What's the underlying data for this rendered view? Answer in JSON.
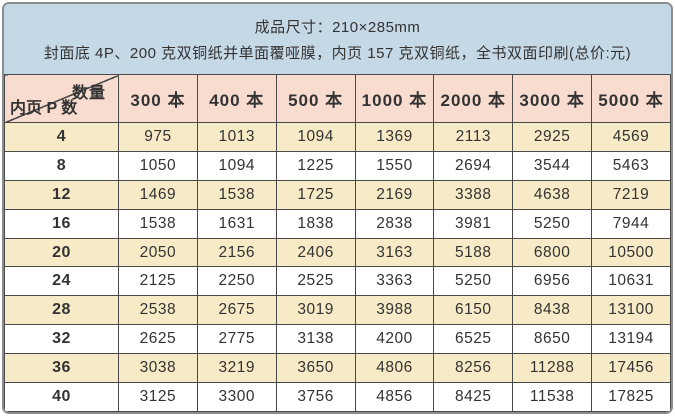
{
  "banner": {
    "line1": "成品尺寸：210×285mm",
    "line2": "封面底 4P、200 克双铜纸并单面覆哑膜，内页 157 克双铜纸，全书双面印刷(总价:元)"
  },
  "table": {
    "corner": {
      "quantity_label": "数量",
      "pages_label": "内页 P 数"
    },
    "quantity_columns": [
      "300 本",
      "400 本",
      "500 本",
      "1000 本",
      "2000 本",
      "3000 本",
      "5000 本"
    ],
    "rows": [
      {
        "pages": "4",
        "prices": [
          "975",
          "1013",
          "1094",
          "1369",
          "2113",
          "2925",
          "4569"
        ]
      },
      {
        "pages": "8",
        "prices": [
          "1050",
          "1094",
          "1225",
          "1550",
          "2694",
          "3544",
          "5463"
        ]
      },
      {
        "pages": "12",
        "prices": [
          "1469",
          "1538",
          "1725",
          "2169",
          "3388",
          "4638",
          "7219"
        ]
      },
      {
        "pages": "16",
        "prices": [
          "1538",
          "1631",
          "1838",
          "2838",
          "3981",
          "5250",
          "7944"
        ]
      },
      {
        "pages": "20",
        "prices": [
          "2050",
          "2156",
          "2406",
          "3163",
          "5188",
          "6800",
          "10500"
        ]
      },
      {
        "pages": "24",
        "prices": [
          "2125",
          "2250",
          "2525",
          "3363",
          "5250",
          "6956",
          "10631"
        ]
      },
      {
        "pages": "28",
        "prices": [
          "2538",
          "2675",
          "3019",
          "3988",
          "6150",
          "8438",
          "13100"
        ]
      },
      {
        "pages": "32",
        "prices": [
          "2625",
          "2775",
          "3138",
          "4200",
          "6525",
          "8650",
          "13194"
        ]
      },
      {
        "pages": "36",
        "prices": [
          "3038",
          "3219",
          "3650",
          "4806",
          "8256",
          "11288",
          "17456"
        ]
      },
      {
        "pages": "40",
        "prices": [
          "3125",
          "3300",
          "3756",
          "4856",
          "8425",
          "11538",
          "17825"
        ]
      }
    ]
  },
  "colors": {
    "banner_bg": "#c5d8e5",
    "header_bg": "#f8dcd0",
    "row_alt_bg": "#f7eac6",
    "row_bg": "#ffffff",
    "border": "#4a4a4a"
  }
}
